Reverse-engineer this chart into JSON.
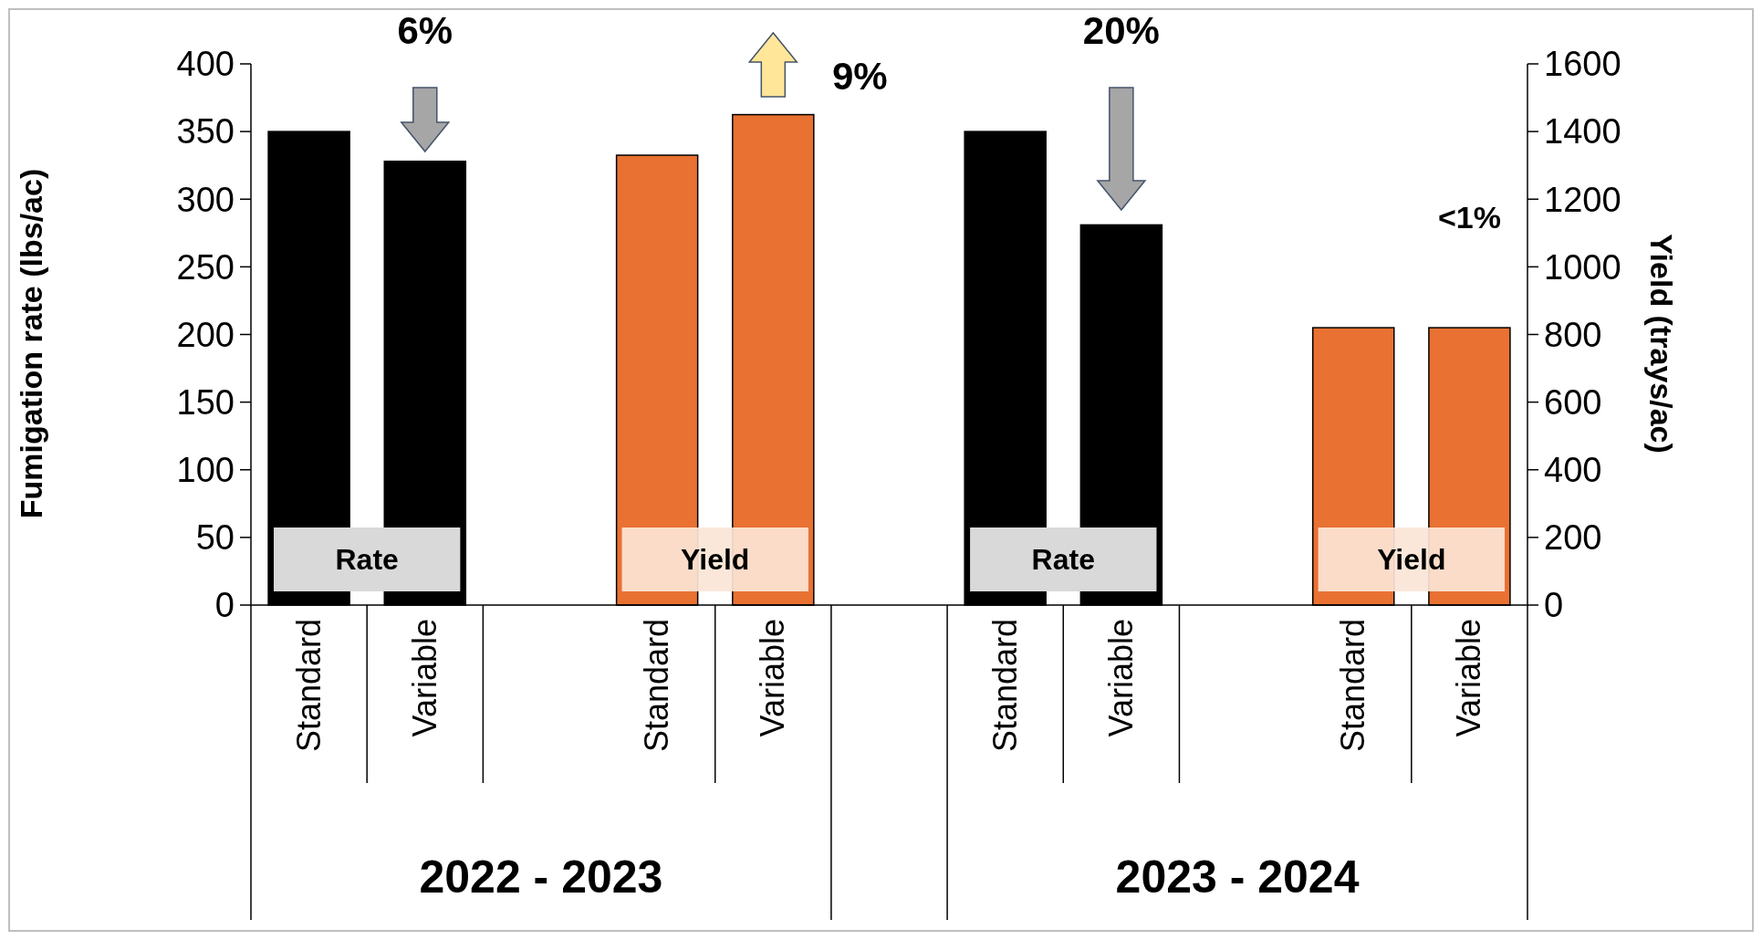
{
  "chart_data": {
    "type": "bar",
    "ylabel": "Fumigation rate (lbs/ac)",
    "y2label": "Yield (trays/ac)",
    "categories": [
      "Standard",
      "Variable",
      null,
      "Standard",
      "Variable",
      null,
      "Standard",
      "Variable",
      null,
      "Standard",
      "Variable"
    ],
    "series": [
      {
        "color": "#000000",
        "values": [
          350,
          328,
          null,
          null,
          null,
          null,
          350,
          281,
          null,
          null,
          null
        ]
      },
      {
        "color": "#e97132",
        "axis": "y2",
        "values": [
          null,
          null,
          null,
          1330,
          1450,
          null,
          null,
          null,
          null,
          820,
          820
        ]
      }
    ],
    "ylim": [
      0,
      400
    ],
    "yticks": [
      0,
      50,
      100,
      150,
      200,
      250,
      300,
      350,
      400
    ],
    "y2lim": [
      0,
      1600
    ],
    "y2ticks": [
      0,
      200,
      400,
      600,
      800,
      1000,
      1200,
      1400,
      1600
    ],
    "grid": false,
    "annotations": [
      "Rate",
      "Yield",
      "Rate",
      "Yield",
      "6%",
      "9%",
      "20%",
      "<1%",
      "2022 - 2023",
      "2023 - 2024"
    ]
  }
}
